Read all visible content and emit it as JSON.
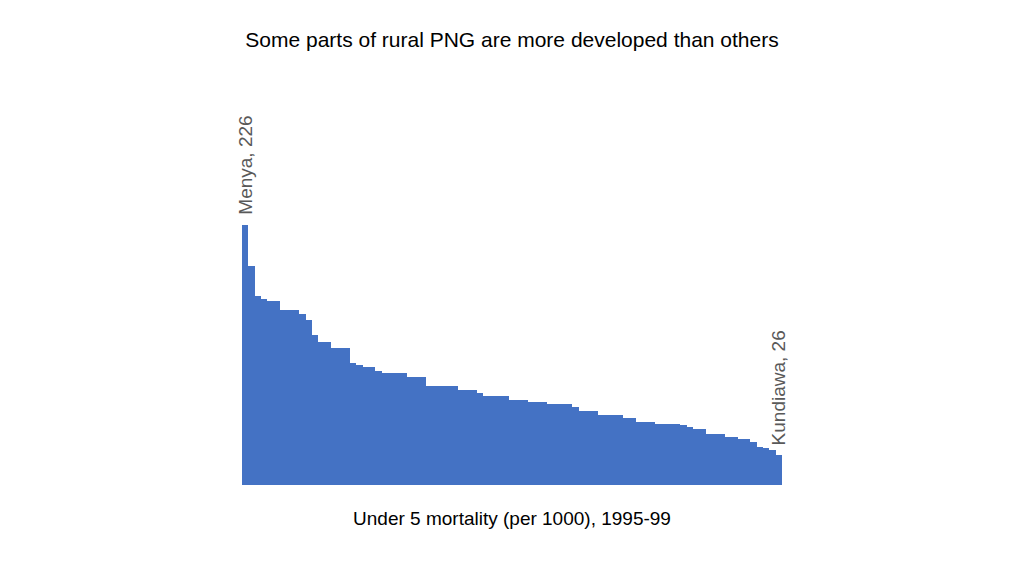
{
  "chart_data": {
    "type": "bar",
    "title": "Some parts of rural PNG are more developed than others",
    "x_label": "Under 5 mortality (per 1000), 1995-99",
    "categories": [
      "Menya",
      null,
      null,
      null,
      null,
      null,
      null,
      null,
      null,
      null,
      null,
      null,
      null,
      null,
      null,
      null,
      null,
      null,
      null,
      null,
      null,
      null,
      null,
      null,
      null,
      null,
      null,
      null,
      null,
      null,
      null,
      null,
      null,
      null,
      null,
      null,
      null,
      null,
      null,
      null,
      null,
      null,
      null,
      null,
      null,
      null,
      null,
      null,
      null,
      null,
      null,
      null,
      null,
      null,
      null,
      null,
      null,
      null,
      null,
      null,
      null,
      null,
      null,
      null,
      null,
      null,
      null,
      null,
      null,
      null,
      null,
      null,
      null,
      null,
      null,
      null,
      null,
      null,
      null,
      null,
      null,
      null,
      null,
      null,
      "Kundiawa"
    ],
    "values": [
      226,
      190,
      164,
      162,
      160,
      160,
      152,
      152,
      152,
      149,
      143,
      130,
      124,
      124,
      119,
      119,
      119,
      106,
      104,
      103,
      103,
      99,
      97,
      97,
      97,
      97,
      94,
      94,
      94,
      86,
      86,
      86,
      86,
      86,
      83,
      83,
      83,
      80,
      77,
      77,
      77,
      77,
      74,
      74,
      74,
      72,
      72,
      72,
      70,
      70,
      70,
      70,
      68,
      64,
      64,
      64,
      61,
      61,
      61,
      61,
      58,
      58,
      55,
      55,
      55,
      53,
      53,
      53,
      53,
      52,
      50,
      49,
      49,
      44,
      44,
      44,
      42,
      42,
      40,
      40,
      37,
      33,
      32,
      30,
      26
    ],
    "color": "#4472c4",
    "ylim": [
      0,
      226
    ],
    "grid": false,
    "tick_labels": false,
    "annotations": [
      {
        "text": "Menya, 226",
        "category": "Menya"
      },
      {
        "text": "Kundiawa, 26",
        "category": "Kundiawa"
      }
    ]
  }
}
